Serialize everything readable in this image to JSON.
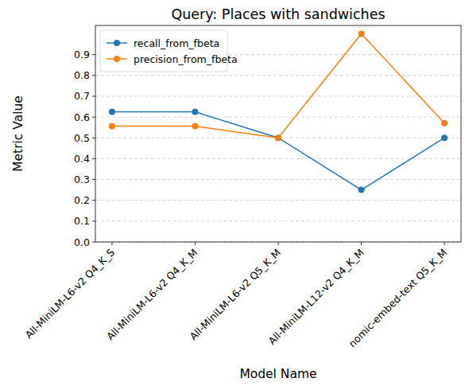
{
  "chart_data": {
    "type": "line",
    "title": "Query: Places with sandwiches",
    "x_label": "Model Name",
    "y_label": "Metric Value",
    "categories": [
      "All-MiniLM-L6-v2 Q4_K_S",
      "All-MiniLM-L6-v2 Q4_K_M",
      "All-MiniLM-L6-v2 Q5_K_M",
      "All-MiniLM-L12-v2 Q4_K_M",
      "nomic-embed-text Q5_K_M"
    ],
    "series": [
      {
        "name": "recall_from_fbeta",
        "color": "#1f77b4",
        "marker": "o",
        "values": [
          0.625,
          0.625,
          0.5,
          0.25,
          0.5
        ]
      },
      {
        "name": "precision_from_fbeta",
        "color": "#ff7f0e",
        "marker": "o",
        "values": [
          0.556,
          0.556,
          0.5,
          1.0,
          0.571
        ]
      }
    ],
    "ylim": [
      0,
      1.04
    ],
    "yticks": [
      {
        "value": 0,
        "label": "0.0"
      },
      0.1,
      0.2,
      0.3,
      0.4,
      0.5,
      0.6,
      0.7,
      0.8,
      0.9
    ],
    "grid": "y",
    "legend": "upper left"
  }
}
